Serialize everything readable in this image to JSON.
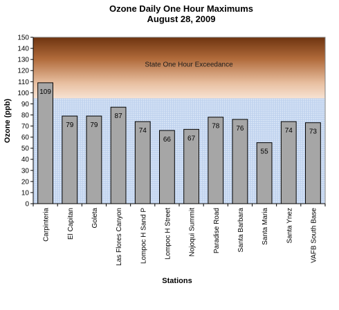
{
  "chart_data": {
    "type": "bar",
    "title": "Ozone Daily One Hour Maximums",
    "subtitle": "August 28, 2009",
    "xlabel": "Stations",
    "ylabel": "Ozone (ppb)",
    "ylim": [
      0,
      150
    ],
    "yticks": [
      0,
      10,
      20,
      30,
      40,
      50,
      60,
      70,
      80,
      90,
      100,
      110,
      120,
      130,
      140,
      150
    ],
    "categories": [
      "Carpinteria",
      "El Capitan",
      "Goleta",
      "Las Flores Canyon",
      "Lompoc H Sand P",
      "Lompoc H Street",
      "Nojoqui Summit",
      "Paradise Road",
      "Santa Barbara",
      "Santa Maria",
      "Santa Ynez",
      "VAFB South Base"
    ],
    "values": [
      109,
      79,
      79,
      87,
      74,
      66,
      67,
      78,
      76,
      55,
      74,
      73
    ],
    "threshold": {
      "value": 95,
      "label": "State One Hour Exceedance"
    },
    "grid": false,
    "legend": "none",
    "colors": {
      "bar": "#a6a6a6",
      "bar_stroke": "#000000",
      "band_top": "#7a3a10",
      "band_bottom": "#f5dcc8",
      "plot_background": "#c8d8f0"
    }
  }
}
